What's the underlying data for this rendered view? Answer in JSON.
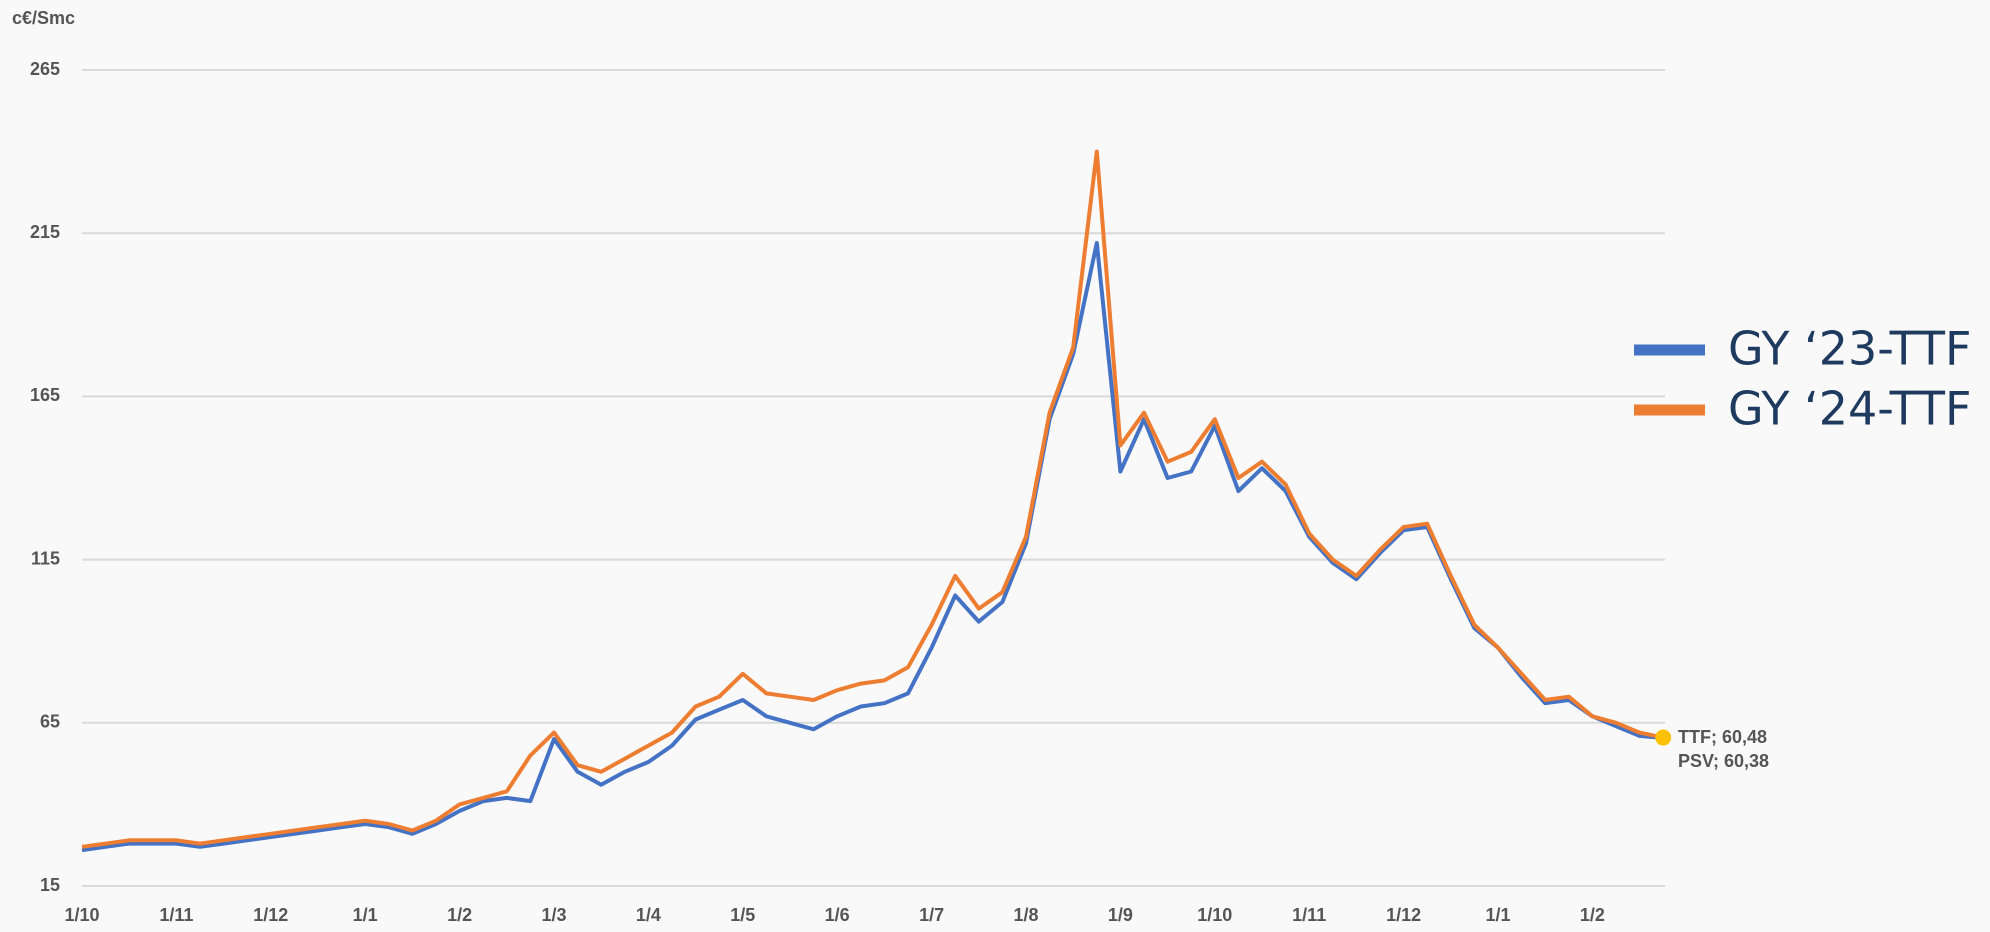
{
  "chart_data": {
    "type": "line",
    "y_label": "c€/Smc",
    "categories": [
      "1/10",
      null,
      null,
      null,
      "1/11",
      null,
      null,
      null,
      "1/12",
      null,
      null,
      null,
      "1/1",
      null,
      null,
      null,
      "1/2",
      null,
      null,
      null,
      "1/3",
      null,
      null,
      null,
      "1/4",
      null,
      null,
      null,
      "1/5",
      null,
      null,
      null,
      "1/6",
      null,
      null,
      null,
      "1/7",
      null,
      null,
      null,
      "1/8",
      null,
      null,
      null,
      "1/9",
      null,
      null,
      null,
      "1/10",
      null,
      null,
      null,
      "1/11",
      null,
      null,
      null,
      "1/12",
      null,
      null,
      null,
      "1/1",
      null,
      null,
      null,
      "1/2",
      null,
      null,
      null
    ],
    "series": [
      {
        "name": "GY ‘23-TTF",
        "color": "#4472c4",
        "values": [
          26,
          27,
          28,
          28,
          28,
          27,
          28,
          29,
          30,
          31,
          32,
          33,
          34,
          33,
          31,
          34,
          38,
          41,
          42,
          41,
          60,
          50,
          46,
          50,
          53,
          58,
          66,
          69,
          72,
          67,
          65,
          63,
          67,
          70,
          71,
          74,
          88,
          104,
          96,
          102,
          120,
          158,
          178,
          212,
          142,
          158,
          140,
          142,
          156,
          136,
          143,
          136,
          122,
          114,
          109,
          117,
          124,
          125,
          109,
          94,
          88,
          79,
          71,
          72,
          67,
          64,
          61,
          60.38
        ]
      },
      {
        "name": "GY ‘24-TTF",
        "color": "#ed7d31",
        "values": [
          27,
          28,
          29,
          29,
          29,
          28,
          29,
          30,
          31,
          32,
          33,
          34,
          35,
          34,
          32,
          35,
          40,
          42,
          44,
          55,
          62,
          52,
          50,
          54,
          58,
          62,
          70,
          73,
          80,
          74,
          73,
          72,
          75,
          77,
          78,
          82,
          95,
          110,
          100,
          105,
          122,
          160,
          180,
          240,
          150,
          160,
          145,
          148,
          158,
          140,
          145,
          138,
          123,
          115,
          110,
          118,
          125,
          126,
          110,
          95,
          88,
          80,
          72,
          73,
          67,
          65,
          62,
          60.48
        ]
      }
    ],
    "ylim": [
      15,
      265
    ],
    "yticks": [
      15,
      65,
      115,
      165,
      215,
      265
    ],
    "grid": true,
    "annotations": [
      "TTF; 60,48",
      "PSV; 60,38"
    ],
    "marker_color": "#ffc000"
  }
}
